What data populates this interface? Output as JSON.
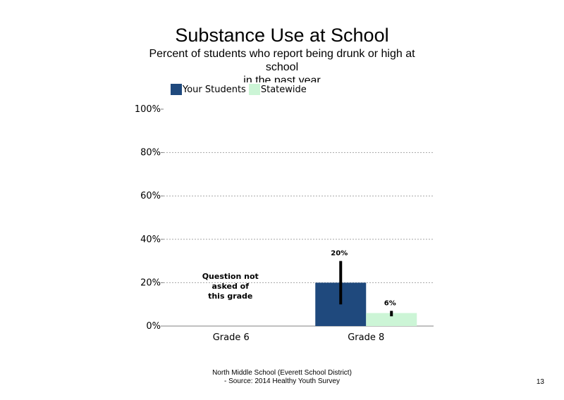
{
  "header": {
    "title": "Substance Use at School",
    "subtitle_lines": [
      "Percent of students who report being drunk or high at",
      "school",
      "in the past year"
    ]
  },
  "legend": [
    {
      "label": "Your Students",
      "color": "#1f497d"
    },
    {
      "label": "Statewide",
      "color": "#ccf5d6"
    }
  ],
  "footer": {
    "line1": "North Middle School (Everett School District)",
    "line2": "- Source: 2014 Healthy Youth Survey",
    "page_number": "13"
  },
  "chart_data": {
    "type": "bar",
    "title": "Substance Use at School",
    "categories": [
      "Grade 6",
      "Grade 8"
    ],
    "series": [
      {
        "name": "Your Students",
        "color": "#1f497d",
        "values": [
          null,
          20
        ],
        "error_low": [
          null,
          10
        ],
        "error_high": [
          null,
          30
        ],
        "labels": [
          null,
          "20%"
        ]
      },
      {
        "name": "Statewide",
        "color": "#ccf5d6",
        "values": [
          null,
          6
        ],
        "error_low": [
          null,
          4.5
        ],
        "error_high": [
          null,
          7
        ],
        "labels": [
          null,
          "6%"
        ]
      }
    ],
    "ylim": [
      0,
      100
    ],
    "yticks": [
      0,
      20,
      40,
      60,
      80,
      100
    ],
    "ytick_labels": [
      "0%",
      "20%",
      "40%",
      "60%",
      "80%",
      "100%"
    ],
    "grid": "dotted horizontal",
    "legend_position": "top-left",
    "annotations": [
      {
        "category": "Grade 6",
        "text_lines": [
          "Question not",
          "asked of",
          "this grade"
        ]
      }
    ]
  }
}
